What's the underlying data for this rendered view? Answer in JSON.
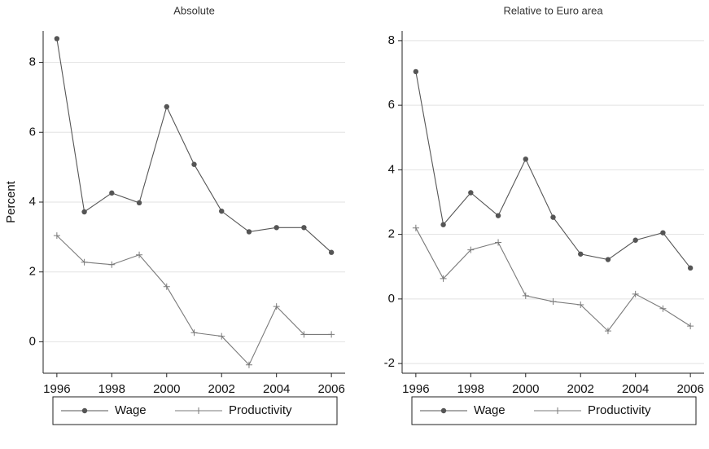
{
  "chart_data": [
    {
      "type": "line",
      "title": "Absolute",
      "ylabel": "Percent",
      "x": [
        1996,
        1997,
        1998,
        1999,
        2000,
        2001,
        2002,
        2003,
        2004,
        2005,
        2006
      ],
      "xlim": [
        1995.5,
        2006.5
      ],
      "xticks": [
        1996,
        1998,
        2000,
        2002,
        2004,
        2006
      ],
      "ylim": [
        -0.9,
        8.9
      ],
      "yticks": [
        0,
        2,
        4,
        6,
        8
      ],
      "grid": true,
      "legend": "bottom",
      "series": [
        {
          "name": "Wage",
          "color": "#555555",
          "marker": "circle",
          "values": [
            8.68,
            3.72,
            4.26,
            3.98,
            6.73,
            5.08,
            3.74,
            3.15,
            3.27,
            3.27,
            2.56
          ]
        },
        {
          "name": "Productivity",
          "color": "#7a7a7a",
          "marker": "plus",
          "values": [
            3.04,
            2.28,
            2.21,
            2.49,
            1.58,
            0.26,
            0.16,
            -0.66,
            1.01,
            0.21,
            0.21
          ]
        }
      ]
    },
    {
      "type": "line",
      "title": "Relative to Euro area",
      "x": [
        1996,
        1997,
        1998,
        1999,
        2000,
        2001,
        2002,
        2003,
        2004,
        2005,
        2006
      ],
      "xlim": [
        1995.5,
        2006.5
      ],
      "xticks": [
        1996,
        1998,
        2000,
        2002,
        2004,
        2006
      ],
      "ylim": [
        -2.3,
        8.3
      ],
      "yticks": [
        -2,
        0,
        2,
        4,
        6,
        8
      ],
      "grid": true,
      "legend": "bottom",
      "series": [
        {
          "name": "Wage",
          "color": "#555555",
          "marker": "circle",
          "values": [
            7.04,
            2.3,
            3.29,
            2.58,
            4.33,
            2.53,
            1.39,
            1.22,
            1.82,
            2.05,
            0.96
          ]
        },
        {
          "name": "Productivity",
          "color": "#7a7a7a",
          "marker": "plus",
          "values": [
            2.2,
            0.63,
            1.52,
            1.75,
            0.1,
            -0.08,
            -0.18,
            -0.99,
            0.15,
            -0.3,
            -0.84
          ]
        }
      ]
    }
  ]
}
